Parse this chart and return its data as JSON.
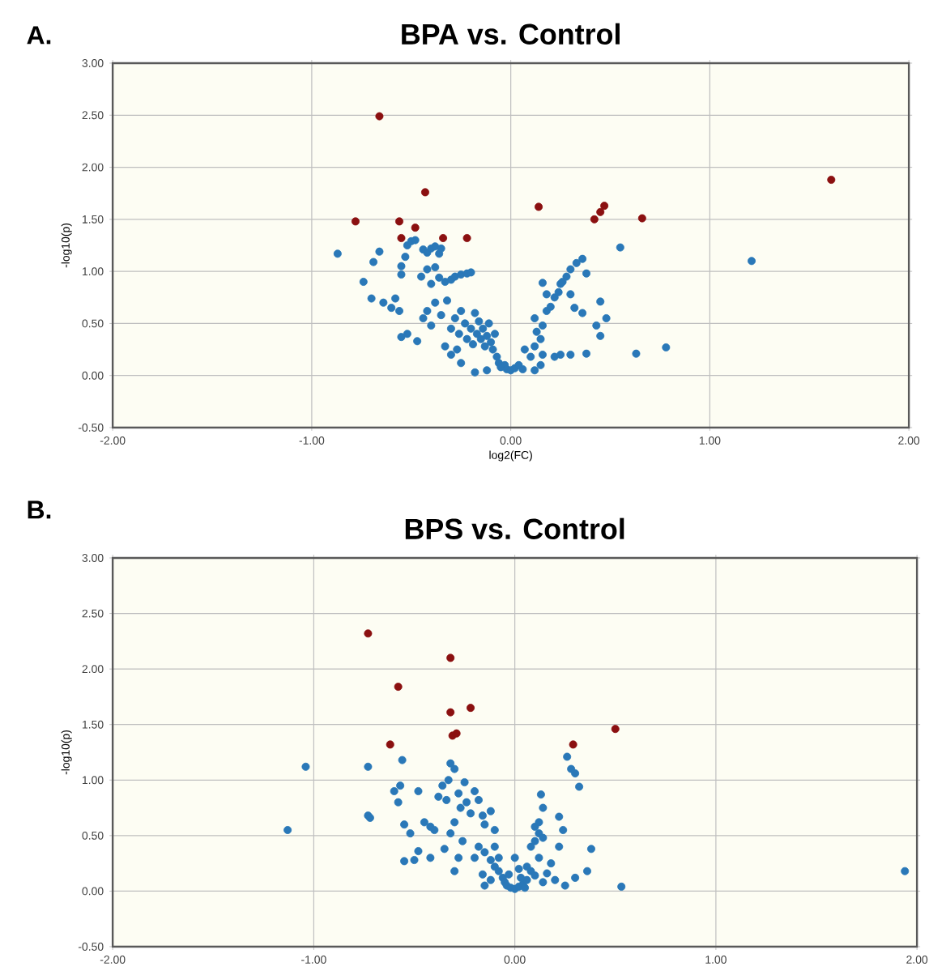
{
  "chart_data": [
    {
      "type": "scatter",
      "title": "BPA vs. Control",
      "xlabel": "log2(FC)",
      "ylabel": "-log10(p)",
      "annotations": [
        "A."
      ],
      "xlim": [
        -2,
        2
      ],
      "ylim": [
        -0.5,
        3
      ],
      "xticks": [
        {
          "value": -2,
          "label": "-2.00"
        },
        {
          "value": -1,
          "label": "-1.00"
        },
        {
          "value": 0,
          "label": "0.00"
        },
        {
          "value": 1,
          "label": "1.00"
        },
        {
          "value": 2,
          "label": "2.00"
        }
      ],
      "yticks": [
        {
          "value": -0.5,
          "label": "-0.50"
        },
        {
          "value": 0,
          "label": "0.00"
        },
        {
          "value": 0.5,
          "label": "0.50"
        },
        {
          "value": 1,
          "label": "1.00"
        },
        {
          "value": 1.5,
          "label": "1.50"
        },
        {
          "value": 2,
          "label": "2.00"
        },
        {
          "value": 2.5,
          "label": "2.50"
        },
        {
          "value": 3,
          "label": "3.00"
        }
      ],
      "grid": true,
      "marker": "circle",
      "series": [
        {
          "color": "#8b1010",
          "x": [
            -0.66,
            -0.43,
            -0.78,
            -0.56,
            -0.48,
            -0.55,
            -0.34,
            -0.22,
            0.14,
            0.47,
            0.45,
            0.42,
            0.66,
            1.61
          ],
          "values": [
            2.49,
            1.76,
            1.48,
            1.48,
            1.42,
            1.32,
            1.32,
            1.32,
            1.62,
            1.63,
            1.57,
            1.5,
            1.51,
            1.88
          ]
        },
        {
          "color": "#2a78b8",
          "x": [
            -0.87,
            1.21,
            0.55,
            0.78,
            0.63,
            -0.74,
            -0.69,
            -0.66,
            -0.7,
            -0.64,
            -0.6,
            -0.56,
            -0.58,
            -0.55,
            -0.55,
            -0.53,
            -0.52,
            -0.5,
            -0.48,
            -0.44,
            -0.42,
            -0.4,
            -0.38,
            -0.36,
            -0.35,
            -0.45,
            -0.42,
            -0.4,
            -0.38,
            -0.36,
            -0.33,
            -0.3,
            -0.28,
            -0.25,
            -0.22,
            -0.2,
            -0.55,
            -0.52,
            -0.47,
            -0.44,
            -0.42,
            -0.4,
            -0.38,
            -0.35,
            -0.32,
            -0.3,
            -0.28,
            -0.26,
            -0.25,
            -0.23,
            -0.22,
            -0.2,
            -0.19,
            -0.18,
            -0.17,
            -0.16,
            -0.15,
            -0.14,
            -0.13,
            -0.12,
            -0.11,
            -0.1,
            -0.09,
            -0.08,
            -0.07,
            -0.06,
            -0.05,
            -0.03,
            -0.02,
            0.0,
            0.02,
            0.04,
            0.06,
            -0.12,
            -0.18,
            -0.25,
            -0.3,
            -0.33,
            -0.27,
            0.12,
            0.15,
            0.16,
            0.1,
            0.07,
            0.12,
            0.15,
            0.13,
            0.16,
            0.12,
            0.18,
            0.2,
            0.22,
            0.24,
            0.25,
            0.28,
            0.3,
            0.33,
            0.36,
            0.3,
            0.38,
            0.22,
            0.25,
            0.3,
            0.38,
            0.45,
            0.48,
            0.45,
            0.26,
            0.32,
            0.36,
            0.43,
            0.16,
            0.18
          ],
          "values": [
            1.17,
            1.1,
            1.23,
            0.27,
            0.21,
            0.9,
            1.09,
            1.19,
            0.74,
            0.7,
            0.65,
            0.62,
            0.74,
            0.97,
            1.05,
            1.14,
            1.25,
            1.29,
            1.3,
            1.21,
            1.18,
            1.22,
            1.24,
            1.17,
            1.22,
            0.95,
            1.02,
            0.88,
            1.04,
            0.94,
            0.9,
            0.92,
            0.95,
            0.97,
            0.98,
            0.99,
            0.37,
            0.4,
            0.33,
            0.55,
            0.62,
            0.48,
            0.7,
            0.58,
            0.72,
            0.45,
            0.55,
            0.4,
            0.62,
            0.5,
            0.35,
            0.45,
            0.3,
            0.6,
            0.4,
            0.52,
            0.35,
            0.45,
            0.28,
            0.38,
            0.5,
            0.32,
            0.25,
            0.4,
            0.18,
            0.12,
            0.08,
            0.1,
            0.06,
            0.05,
            0.07,
            0.1,
            0.06,
            0.05,
            0.03,
            0.12,
            0.2,
            0.28,
            0.25,
            0.05,
            0.1,
            0.2,
            0.18,
            0.25,
            0.28,
            0.35,
            0.42,
            0.48,
            0.55,
            0.62,
            0.66,
            0.75,
            0.8,
            0.88,
            0.95,
            1.02,
            1.08,
            1.12,
            0.78,
            0.98,
            0.18,
            0.2,
            0.2,
            0.21,
            0.38,
            0.55,
            0.71,
            0.9,
            0.65,
            0.6,
            0.48,
            0.89,
            0.78
          ]
        }
      ]
    },
    {
      "type": "scatter",
      "title": "BPS vs. Control",
      "ylabel": "-log10(p)",
      "annotations": [
        "B."
      ],
      "xlim": [
        -2,
        2
      ],
      "ylim": [
        -0.5,
        3
      ],
      "xticks": [
        {
          "value": -2,
          "label": "-2.00"
        },
        {
          "value": -1,
          "label": "-1.00"
        },
        {
          "value": 0,
          "label": "0.00"
        },
        {
          "value": 1,
          "label": "1.00"
        },
        {
          "value": 2,
          "label": "2.00"
        }
      ],
      "yticks": [
        {
          "value": -0.5,
          "label": "-0.50"
        },
        {
          "value": 0,
          "label": "0.00"
        },
        {
          "value": 0.5,
          "label": "0.50"
        },
        {
          "value": 1,
          "label": "1.00"
        },
        {
          "value": 1.5,
          "label": "1.50"
        },
        {
          "value": 2,
          "label": "2.00"
        },
        {
          "value": 2.5,
          "label": "2.50"
        },
        {
          "value": 3,
          "label": "3.00"
        }
      ],
      "grid": true,
      "marker": "circle",
      "series": [
        {
          "color": "#8b1010",
          "x": [
            -0.73,
            -0.32,
            -0.58,
            -0.32,
            -0.22,
            -0.31,
            -0.29,
            -0.62,
            0.29,
            0.5
          ],
          "values": [
            2.32,
            2.1,
            1.84,
            1.61,
            1.65,
            1.4,
            1.42,
            1.32,
            1.32,
            1.46
          ]
        },
        {
          "color": "#2a78b8",
          "x": [
            -1.13,
            -1.04,
            -0.73,
            -0.73,
            -0.72,
            1.94,
            0.53,
            0.38,
            0.32,
            0.3,
            0.26,
            0.28,
            -0.6,
            -0.57,
            -0.56,
            -0.58,
            -0.55,
            -0.52,
            -0.48,
            -0.45,
            -0.42,
            -0.4,
            -0.38,
            -0.36,
            -0.34,
            -0.33,
            -0.32,
            -0.3,
            -0.28,
            -0.27,
            -0.25,
            -0.24,
            -0.22,
            -0.2,
            -0.18,
            -0.16,
            -0.15,
            -0.12,
            -0.1,
            -0.3,
            -0.32,
            -0.26,
            -0.28,
            -0.35,
            -0.42,
            -0.5,
            -0.55,
            -0.48,
            -0.3,
            -0.18,
            -0.2,
            -0.15,
            -0.12,
            -0.1,
            -0.08,
            -0.06,
            -0.05,
            -0.04,
            -0.02,
            0.0,
            0.02,
            0.04,
            0.06,
            -0.08,
            -0.12,
            -0.15,
            -0.16,
            0.02,
            0.06,
            0.08,
            0.1,
            0.12,
            0.08,
            0.1,
            0.12,
            0.14,
            0.1,
            0.12,
            0.14,
            0.13,
            0.22,
            0.24,
            0.22,
            0.18,
            0.2,
            0.25,
            0.3,
            0.36,
            0.0,
            -0.1,
            0.03,
            0.05,
            -0.03,
            0.14,
            0.16
          ],
          "values": [
            0.55,
            1.12,
            1.12,
            0.68,
            0.66,
            0.18,
            0.04,
            0.38,
            0.94,
            1.06,
            1.21,
            1.1,
            0.9,
            0.95,
            1.18,
            0.8,
            0.6,
            0.52,
            0.9,
            0.62,
            0.58,
            0.55,
            0.85,
            0.95,
            0.82,
            1.0,
            1.15,
            1.1,
            0.88,
            0.75,
            0.98,
            0.8,
            0.7,
            0.9,
            0.82,
            0.68,
            0.6,
            0.72,
            0.55,
            0.62,
            0.52,
            0.45,
            0.3,
            0.38,
            0.3,
            0.28,
            0.27,
            0.36,
            0.18,
            0.4,
            0.3,
            0.35,
            0.28,
            0.22,
            0.18,
            0.12,
            0.08,
            0.05,
            0.03,
            0.02,
            0.04,
            0.06,
            0.1,
            0.3,
            0.1,
            0.05,
            0.15,
            0.2,
            0.22,
            0.18,
            0.14,
            0.3,
            0.4,
            0.45,
            0.52,
            0.48,
            0.58,
            0.62,
            0.75,
            0.87,
            0.67,
            0.55,
            0.4,
            0.25,
            0.1,
            0.05,
            0.12,
            0.18,
            0.3,
            0.4,
            0.12,
            0.03,
            0.15,
            0.08,
            0.16
          ]
        }
      ]
    }
  ]
}
